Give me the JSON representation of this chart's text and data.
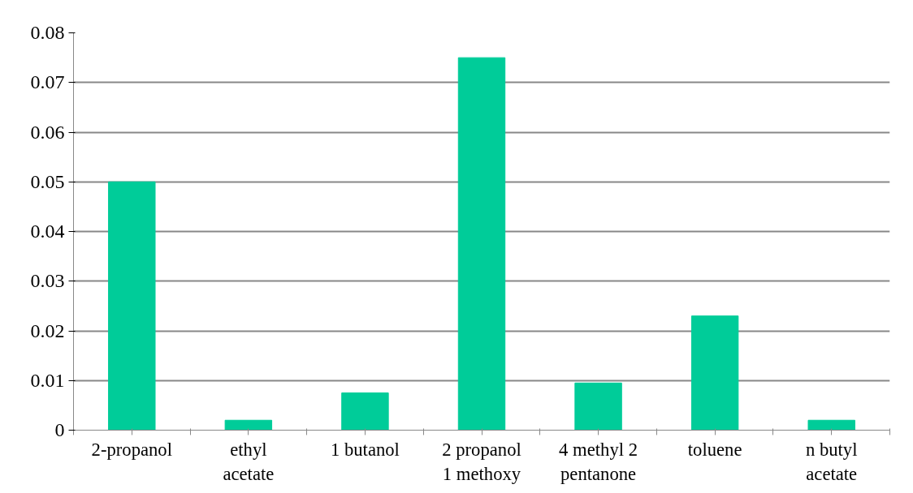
{
  "chart_data": {
    "type": "bar",
    "categories": [
      "2-propanol",
      "ethyl\nacetate",
      "1 butanol",
      "2 propanol\n1 methoxy",
      "4 methyl 2\npentanone",
      "toluene",
      "n butyl\nacetate"
    ],
    "values": [
      0.05,
      0.002,
      0.0075,
      0.075,
      0.0095,
      0.023,
      0.002
    ],
    "color": "#00cc99",
    "ylim": [
      0,
      0.08
    ],
    "yticks": [
      0,
      0.01,
      0.02,
      0.03,
      0.04,
      0.05,
      0.06,
      0.07,
      0.08
    ],
    "grid": "y"
  }
}
